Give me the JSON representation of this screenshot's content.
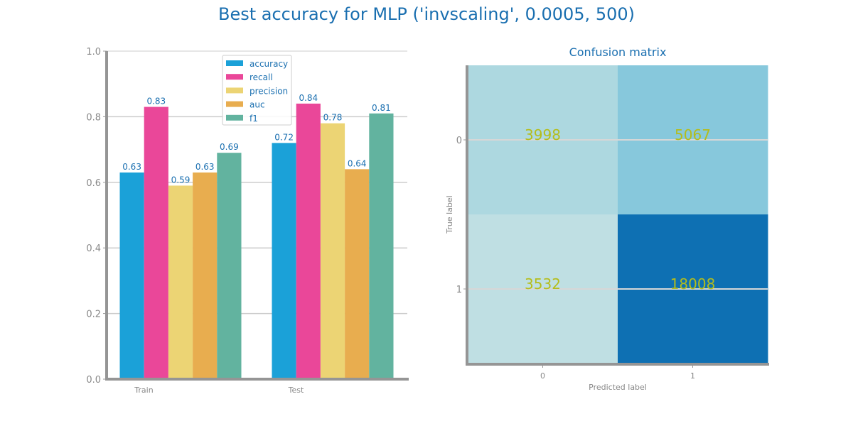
{
  "title": "Best accuracy for MLP ('invscaling', 0.0005, 500)",
  "chart_data": [
    {
      "type": "bar",
      "categories": [
        "Train",
        "Test"
      ],
      "series": [
        {
          "name": "accuracy",
          "color": "#1ba1d8",
          "values": [
            0.63,
            0.72
          ]
        },
        {
          "name": "recall",
          "color": "#ea4799",
          "values": [
            0.83,
            0.84
          ]
        },
        {
          "name": "precision",
          "color": "#ecd474",
          "values": [
            0.59,
            0.78
          ]
        },
        {
          "name": "auc",
          "color": "#e8ad4f",
          "values": [
            0.63,
            0.64
          ]
        },
        {
          "name": "f1",
          "color": "#62b39f",
          "values": [
            0.69,
            0.81
          ]
        }
      ],
      "value_labels": [
        [
          "0.63",
          "0.72"
        ],
        [
          "0.83",
          "0.84"
        ],
        [
          "0.59",
          "0.78"
        ],
        [
          "0.63",
          "0.64"
        ],
        [
          "0.69",
          "0.81"
        ]
      ],
      "ylim": [
        0,
        1.0
      ],
      "yticks": [
        "0.0",
        "0.2",
        "0.4",
        "0.6",
        "0.8",
        "1.0"
      ],
      "grid": true,
      "legend_position": "top-center"
    },
    {
      "type": "heatmap",
      "title": "Confusion matrix",
      "xlabel": "Predicted label",
      "ylabel": "True label",
      "x_categories": [
        "0",
        "1"
      ],
      "y_categories": [
        "0",
        "1"
      ],
      "values": [
        [
          3998,
          5067
        ],
        [
          3532,
          18008
        ]
      ],
      "value_labels": [
        [
          "3998",
          "5067"
        ],
        [
          "3532",
          "18008"
        ]
      ],
      "cell_colors": [
        [
          "#add8e0",
          "#87c8dc"
        ],
        [
          "#bfdfe3",
          "#0e70b3"
        ]
      ]
    }
  ]
}
